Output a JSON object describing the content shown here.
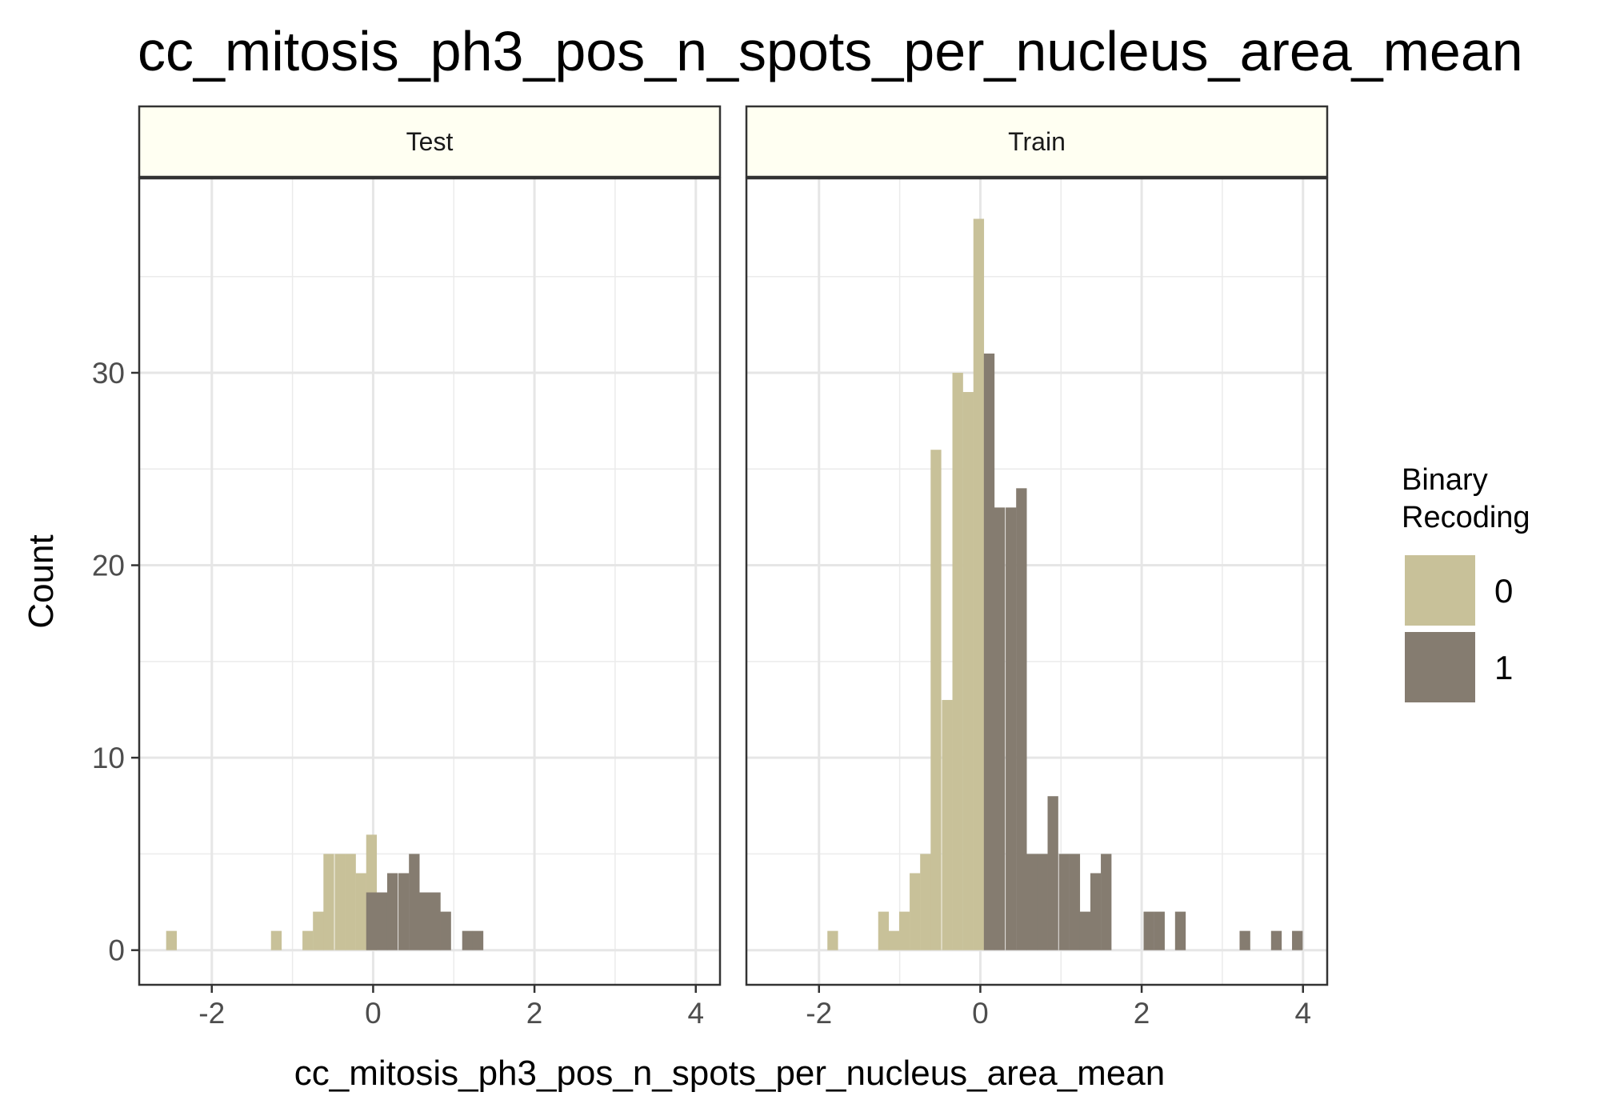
{
  "chart_data": {
    "type": "bar",
    "title": "cc_mitosis_ph3_pos_n_spots_per_nucleus_area_mean",
    "xlabel": "cc_mitosis_ph3_pos_n_spots_per_nucleus_area_mean",
    "ylabel": "Count",
    "xlim": [
      -2.9,
      4.3
    ],
    "ylim": [
      -1.8,
      40.1
    ],
    "x_ticks": [
      -2,
      0,
      2,
      4
    ],
    "x_tick_labels": [
      "-2",
      "0",
      "2",
      "4"
    ],
    "y_ticks": [
      0,
      10,
      20,
      30
    ],
    "y_tick_labels": [
      "0",
      "10",
      "20",
      "30"
    ],
    "bin_width": 0.132,
    "grid": true,
    "legend": {
      "title_lines": [
        "Binary",
        "Recoding"
      ],
      "position": "right",
      "entries": [
        {
          "label": "0",
          "color": "#c8c199"
        },
        {
          "label": "1",
          "color": "#857c70"
        }
      ]
    },
    "colors": {
      "group0": "#c8c199",
      "group1": "#857c70",
      "strip_fill": "#fffff2"
    },
    "facets": [
      {
        "name": "Test",
        "series": [
          {
            "group": "0",
            "x": [
              -2.5,
              -1.2,
              -0.81,
              -0.68,
              -0.55,
              -0.41,
              -0.28,
              -0.15,
              -0.02
            ],
            "values": [
              1,
              1,
              1,
              2,
              5,
              5,
              5,
              4,
              6
            ]
          },
          {
            "group": "1",
            "x": [
              -0.02,
              0.11,
              0.24,
              0.38,
              0.51,
              0.64,
              0.77,
              0.9,
              1.17,
              1.3
            ],
            "values": [
              3,
              3,
              4,
              4,
              5,
              3,
              3,
              2,
              1,
              1
            ]
          }
        ]
      },
      {
        "name": "Train",
        "series": [
          {
            "group": "0",
            "x": [
              -1.83,
              -1.2,
              -1.07,
              -0.94,
              -0.81,
              -0.68,
              -0.55,
              -0.41,
              -0.28,
              -0.15,
              -0.02
            ],
            "values": [
              1,
              2,
              1,
              2,
              4,
              5,
              26,
              13,
              30,
              29,
              38
            ]
          },
          {
            "group": "1",
            "x": [
              0.11,
              0.24,
              0.38,
              0.51,
              0.64,
              0.77,
              0.9,
              1.04,
              1.17,
              1.3,
              1.43,
              1.56,
              2.09,
              2.22,
              2.48,
              3.28,
              3.67,
              3.93
            ],
            "values": [
              31,
              23,
              23,
              24,
              5,
              5,
              8,
              5,
              5,
              2,
              4,
              5,
              2,
              2,
              2,
              1,
              1,
              1
            ]
          }
        ]
      }
    ]
  }
}
